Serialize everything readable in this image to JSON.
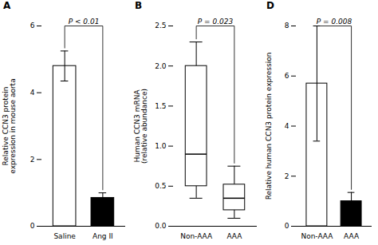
{
  "chart_data": [
    {
      "type": "bar",
      "title": "A",
      "categories": [
        "Saline",
        "Ang II"
      ],
      "values": [
        4.8,
        0.85
      ],
      "errors": [
        0.45,
        0.15
      ],
      "colors": [
        "white",
        "black"
      ],
      "ylabel": "Relative CCN3 protein\nexpression in mouse aorta",
      "ylim": [
        0,
        6
      ],
      "yticks": [
        0,
        2,
        4,
        6
      ],
      "annotations": [
        "P < 0.01"
      ]
    },
    {
      "type": "box",
      "title": "B",
      "categories": [
        "Non-AAA",
        "AAA"
      ],
      "q1": [
        0.5,
        0.2
      ],
      "median": [
        0.9,
        0.35
      ],
      "q3": [
        2.0,
        0.52
      ],
      "whisker_low": [
        0.35,
        0.1
      ],
      "whisker_high": [
        2.3,
        0.75
      ],
      "ylabel": "Human CCN3 mRNA\n(relative abundance)",
      "ylim": [
        0.0,
        2.5
      ],
      "yticks": [
        {
          "value": 0,
          "label": "0.0"
        },
        0.5,
        {
          "value": 1,
          "label": "1.0"
        },
        1.5,
        {
          "value": 2,
          "label": "2.0"
        },
        2.5
      ],
      "annotations": [
        "P = 0.023"
      ]
    },
    {
      "type": "bar",
      "title": "D",
      "categories": [
        "Non-AAA",
        "AAA"
      ],
      "values": [
        5.7,
        1.0
      ],
      "errors": [
        2.3,
        0.35
      ],
      "colors": [
        "white",
        "black"
      ],
      "ylabel": "Relative human CCN3 protein expression",
      "ylim": [
        0,
        8
      ],
      "yticks": [
        0,
        2,
        4,
        6,
        8
      ],
      "annotations": [
        "P = 0.008"
      ]
    }
  ]
}
